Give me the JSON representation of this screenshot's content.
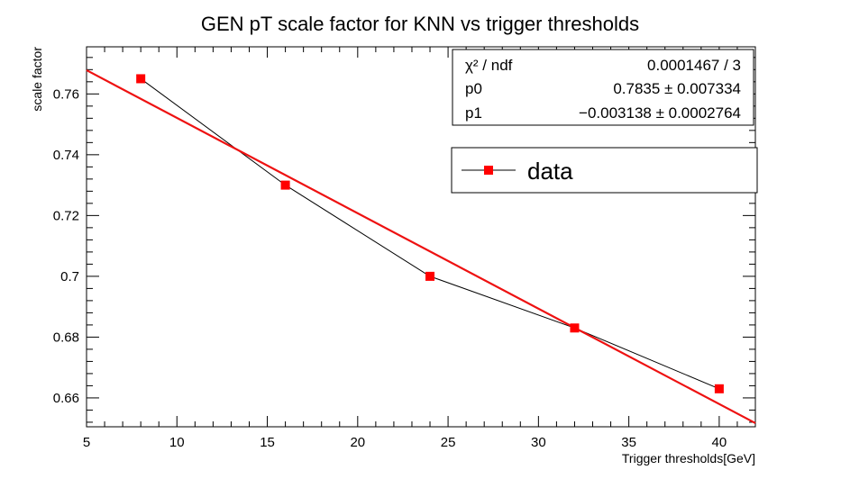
{
  "chart_data": {
    "type": "scatter",
    "title": "GEN pT scale factor for KNN vs trigger thresholds",
    "xlabel": "Trigger thresholds[GeV]",
    "ylabel": "scale factor",
    "xlim": [
      5,
      42
    ],
    "ylim": [
      0.6505,
      0.7755
    ],
    "xticks": [
      5,
      10,
      15,
      20,
      25,
      30,
      35,
      40
    ],
    "xtick_labels": [
      "5",
      "10",
      "15",
      "20",
      "25",
      "30",
      "35",
      "40"
    ],
    "yticks": [
      0.66,
      0.68,
      0.7,
      0.72,
      0.74,
      0.76
    ],
    "ytick_labels": [
      "0.66",
      "0.68",
      "0.7",
      "0.72",
      "0.74",
      "0.76"
    ],
    "grid": false,
    "series": [
      {
        "name": "data",
        "x": [
          8,
          16,
          24,
          32,
          40
        ],
        "y": [
          0.765,
          0.73,
          0.7,
          0.683,
          0.663
        ],
        "marker": "square",
        "marker_color": "#ff0000",
        "line_color": "#000000"
      }
    ],
    "fit": {
      "type": "linear",
      "p0": 0.7835,
      "p1": -0.003138,
      "color": "#ee1111"
    },
    "stats_box": {
      "rows": [
        {
          "label": "χ² / ndf",
          "value": "0.0001467 / 3"
        },
        {
          "label": "p0",
          "value": "0.7835 ± 0.007334"
        },
        {
          "label": "p1",
          "value": "−0.003138 ± 0.0002764"
        }
      ],
      "position": "top-right"
    },
    "legend": {
      "entries": [
        "data"
      ],
      "position": "top-right"
    }
  }
}
